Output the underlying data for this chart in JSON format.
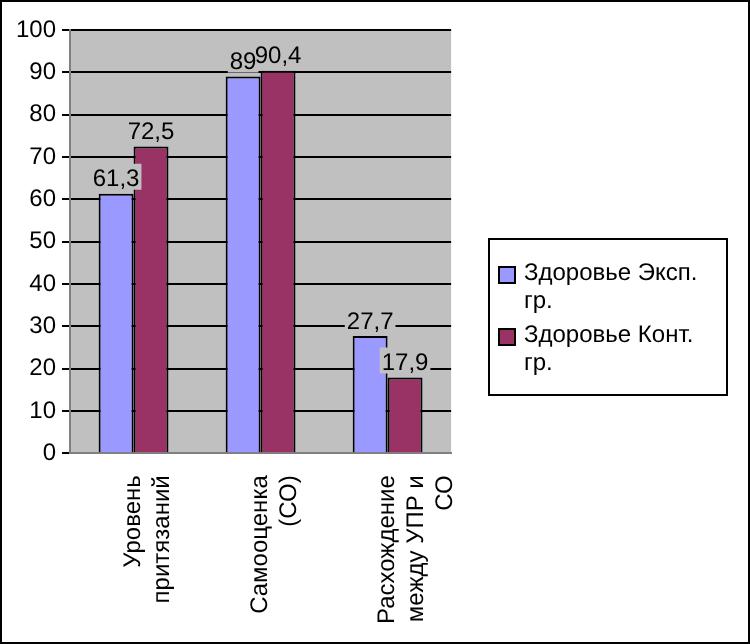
{
  "chart_data": {
    "type": "bar",
    "categories": [
      "Уровень притязаний",
      "Самооценка (СО)",
      "Расхождение между УПР и СО"
    ],
    "series": [
      {
        "name": "Здоровье Эксп. гр.",
        "color": "#9999ff",
        "values": [
          61.3,
          89,
          27.7
        ],
        "value_labels": [
          "61,3",
          "89",
          "27,7"
        ]
      },
      {
        "name": "Здоровье Конт. гр.",
        "color": "#993366",
        "values": [
          72.5,
          90.4,
          17.9
        ],
        "value_labels": [
          "72,5",
          "90,4",
          "17,9"
        ]
      }
    ],
    "ylim": [
      0,
      100
    ],
    "yticks": [
      0,
      10,
      20,
      30,
      40,
      50,
      60,
      70,
      80,
      90,
      100
    ],
    "grid": "y",
    "legend": "right"
  }
}
